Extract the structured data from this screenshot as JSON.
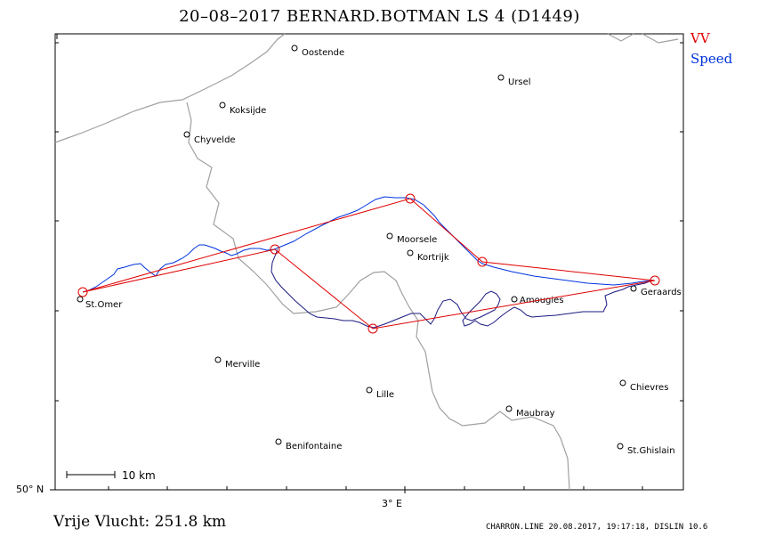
{
  "title": "20–08–2017    BERNARD.BOTMAN    LS 4 (D1449)",
  "legend": {
    "vv": "VV",
    "speed": "Speed",
    "vv_color": "#e00000",
    "speed_color": "#0033dd"
  },
  "axes": {
    "lat_label": "50° N",
    "lon_label": "3° E"
  },
  "scale_bar": {
    "label": "10  km"
  },
  "footer": {
    "distance": "Vrije Vlucht:  251.8 km",
    "credit": "CHARRON.LINE 20.08.2017, 19:17:18, DISLIN 10.6"
  },
  "cities": [
    {
      "name": "Oostende"
    },
    {
      "name": "Ursel"
    },
    {
      "name": "Koksijde"
    },
    {
      "name": "Chyvelde"
    },
    {
      "name": "Moorsele"
    },
    {
      "name": "Kortrijk"
    },
    {
      "name": "St.Omer"
    },
    {
      "name": "Amougies"
    },
    {
      "name": "Geraards"
    },
    {
      "name": "Merville"
    },
    {
      "name": "Lille"
    },
    {
      "name": "Chievres"
    },
    {
      "name": "Maubray"
    },
    {
      "name": "Benifontaine"
    },
    {
      "name": "St.Ghislain"
    }
  ],
  "colors": {
    "coast": "#a0a0a0",
    "track_dark": "#1a1a80",
    "frame": "#000000"
  }
}
